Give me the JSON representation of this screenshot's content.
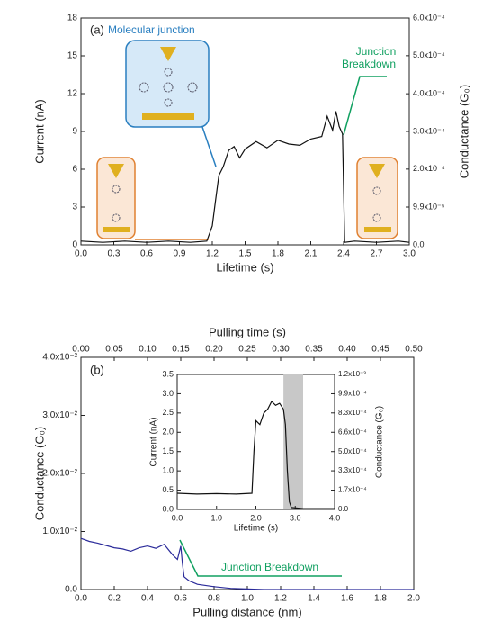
{
  "chart_data": [
    {
      "type": "line",
      "panel": "(a)",
      "x_label": "Lifetime (s)",
      "y_label": "Current (nA)",
      "y2_label": "Conductance (G₀)",
      "color": "#111111",
      "xlim": [
        0,
        3
      ],
      "xticks": [
        {
          "value": 0,
          "label": "0.0"
        },
        0.3,
        0.6,
        0.9,
        1.2,
        1.5,
        1.8,
        2.1,
        2.4,
        2.7,
        {
          "value": 3,
          "label": "3.0"
        }
      ],
      "ylim": [
        0,
        18
      ],
      "yticks": [
        0,
        3,
        6,
        9,
        12,
        15,
        18
      ],
      "y2lim": [
        0,
        0.000596
      ],
      "y2ticks": [
        {
          "value": 0,
          "label": "0.0"
        },
        {
          "value": 9.93e-05,
          "label": "9.9x10⁻⁵"
        },
        {
          "value": 0.000199,
          "label": "2.0x10⁻⁴"
        },
        {
          "value": 0.000298,
          "label": "3.0x10⁻⁴"
        },
        {
          "value": 0.000397,
          "label": "4.0x10⁻⁴"
        },
        {
          "value": 0.000497,
          "label": "5.0x10⁻⁴"
        },
        {
          "value": 0.000596,
          "label": "6.0x10⁻⁴"
        }
      ],
      "x": [
        0,
        0.2,
        0.4,
        0.6,
        0.8,
        1.0,
        1.15,
        1.2,
        1.23,
        1.26,
        1.3,
        1.35,
        1.4,
        1.45,
        1.5,
        1.6,
        1.7,
        1.8,
        1.9,
        2.0,
        2.1,
        2.2,
        2.25,
        2.3,
        2.33,
        2.36,
        2.39,
        2.41,
        2.5,
        2.7,
        2.9,
        3.0
      ],
      "values": [
        0.3,
        0.2,
        0.3,
        0.2,
        0.3,
        0.2,
        0.3,
        1.5,
        3.5,
        5.5,
        6.2,
        7.5,
        7.8,
        6.9,
        7.6,
        8.2,
        7.7,
        8.3,
        8.0,
        7.9,
        8.4,
        8.6,
        10.2,
        9.1,
        10.6,
        9.4,
        8.8,
        0.2,
        0.3,
        0.2,
        0.3,
        0.2
      ],
      "annotations": [
        "Molecular junction",
        "Junction",
        "Breakdown"
      ]
    },
    {
      "type": "line",
      "panel": "(b)",
      "x_label": "Pulling distance (nm)",
      "y_label": "Conductance (G₀)",
      "x2_label": "Pulling time (s)",
      "color": "#2b2b9a",
      "xlim": [
        0,
        2
      ],
      "xticks": [
        {
          "value": 0,
          "label": "0.0"
        },
        0.2,
        0.4,
        0.6,
        0.8,
        {
          "value": 1,
          "label": "1.0"
        },
        1.2,
        1.4,
        1.6,
        1.8,
        {
          "value": 2,
          "label": "2.0"
        }
      ],
      "ylim": [
        0,
        0.04
      ],
      "yticks": [
        {
          "value": 0,
          "label": "0.0"
        },
        {
          "value": 0.01,
          "label": "1.0x10⁻²"
        },
        {
          "value": 0.02,
          "label": "2.0x10⁻²"
        },
        {
          "value": 0.03,
          "label": "3.0x10⁻²"
        },
        {
          "value": 0.04,
          "label": "4.0x10⁻²"
        }
      ],
      "x2lim": [
        0,
        0.5
      ],
      "x2ticks": [
        {
          "value": 0,
          "label": "0.00"
        },
        0.05,
        {
          "value": 0.1,
          "label": "0.10"
        },
        0.15,
        {
          "value": 0.2,
          "label": "0.20"
        },
        0.25,
        {
          "value": 0.3,
          "label": "0.30"
        },
        0.35,
        {
          "value": 0.4,
          "label": "0.40"
        },
        0.45,
        {
          "value": 0.5,
          "label": "0.50"
        }
      ],
      "x": [
        0,
        0.05,
        0.1,
        0.15,
        0.2,
        0.25,
        0.3,
        0.35,
        0.4,
        0.45,
        0.5,
        0.55,
        0.58,
        0.6,
        0.61,
        0.62,
        0.65,
        0.7,
        0.8,
        0.9,
        1.0,
        1.1,
        1.3,
        1.6,
        2.0
      ],
      "values": [
        0.0088,
        0.0083,
        0.008,
        0.0076,
        0.0072,
        0.007,
        0.0066,
        0.0072,
        0.0075,
        0.0071,
        0.0078,
        0.006,
        0.0052,
        0.0075,
        0.0045,
        0.0022,
        0.0015,
        0.0009,
        0.0005,
        0.0002,
        0.0001,
        0,
        0,
        0,
        0
      ],
      "annotations": [
        "Junction Breakdown"
      ]
    },
    {
      "type": "line",
      "x_label": "Lifetime (s)",
      "y_label": "Current (nA)",
      "y2_label": "Conductance (G₀)",
      "color": "#111111",
      "xlim": [
        0,
        4
      ],
      "xticks": [
        {
          "value": 0,
          "label": "0.0"
        },
        {
          "value": 1,
          "label": "1.0"
        },
        {
          "value": 2,
          "label": "2.0"
        },
        {
          "value": 3,
          "label": "3.0"
        },
        {
          "value": 4,
          "label": "4.0"
        }
      ],
      "ylim": [
        0,
        3.5
      ],
      "yticks": [
        {
          "value": 0,
          "label": "0.0"
        },
        0.5,
        {
          "value": 1,
          "label": "1.0"
        },
        1.5,
        {
          "value": 2,
          "label": "2.0"
        },
        2.5,
        {
          "value": 3,
          "label": "3.0"
        },
        3.5
      ],
      "y2lim": [
        0,
        0.00116
      ],
      "y2ticks": [
        {
          "value": 0,
          "label": "0.0"
        },
        {
          "value": 0.000166,
          "label": "1.7x10⁻⁴"
        },
        {
          "value": 0.000332,
          "label": "3.3x10⁻⁴"
        },
        {
          "value": 0.000497,
          "label": "5.0x10⁻⁴"
        },
        {
          "value": 0.000663,
          "label": "6.6x10⁻⁴"
        },
        {
          "value": 0.000829,
          "label": "8.3x10⁻⁴"
        },
        {
          "value": 0.000994,
          "label": "9.9x10⁻⁴"
        },
        {
          "value": 0.00116,
          "label": "1.2x10⁻³"
        }
      ],
      "highlight": [
        2.7,
        3.2
      ],
      "x": [
        0,
        0.5,
        1.0,
        1.5,
        1.9,
        1.95,
        2.0,
        2.1,
        2.2,
        2.3,
        2.4,
        2.5,
        2.6,
        2.7,
        2.75,
        2.8,
        2.85,
        2.9,
        3.2,
        4.0
      ],
      "values": [
        0.42,
        0.4,
        0.41,
        0.4,
        0.42,
        1.5,
        2.3,
        2.2,
        2.5,
        2.6,
        2.8,
        2.7,
        2.75,
        2.6,
        2.2,
        1.0,
        0.2,
        0.05,
        0.02,
        0.02
      ]
    }
  ]
}
